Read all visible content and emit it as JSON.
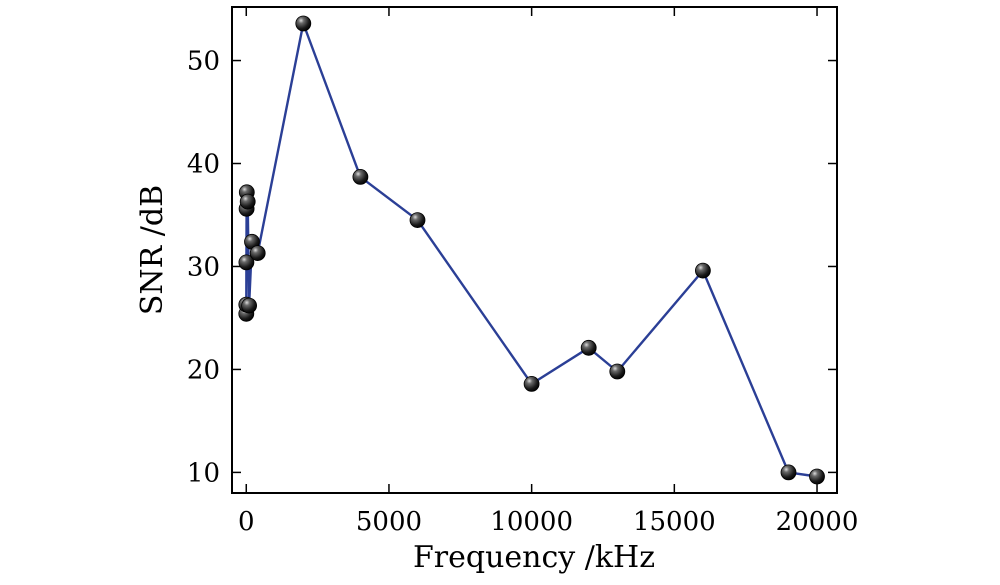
{
  "chart_data": {
    "type": "line",
    "title": "",
    "xlabel": "Frequency /kHz",
    "ylabel": "SNR /dB",
    "xlim": [
      -500,
      20700
    ],
    "ylim": [
      8,
      55.2
    ],
    "xticks": [
      0,
      5000,
      10000,
      15000,
      20000
    ],
    "yticks": [
      10,
      20,
      30,
      40,
      50
    ],
    "grid": false,
    "colors": {
      "line": "#2b3f96",
      "marker": "#111111"
    },
    "series": [
      {
        "x": [
          1,
          2,
          5,
          10,
          20,
          50,
          100,
          200,
          400,
          2000,
          4000,
          6000,
          10000,
          12000,
          13000,
          16000,
          19000,
          20000
        ],
        "y": [
          25.4,
          26.3,
          30.4,
          35.6,
          37.2,
          36.3,
          26.2,
          32.4,
          31.3,
          53.6,
          38.7,
          34.5,
          18.6,
          22.1,
          19.8,
          29.6,
          10.0,
          9.6
        ]
      }
    ]
  }
}
